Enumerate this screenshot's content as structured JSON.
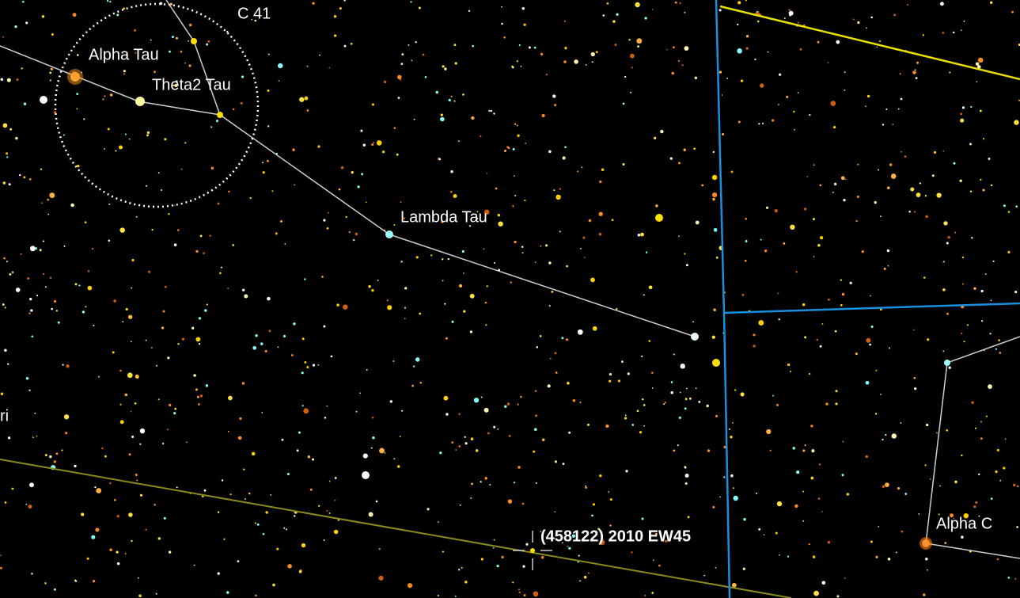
{
  "labels": [
    "C 41",
    "Alpha Tau",
    "Theta2 Tau",
    "Lambda Tau",
    "ri",
    "(458122) 2010 EW45",
    "Alpha C"
  ]
}
